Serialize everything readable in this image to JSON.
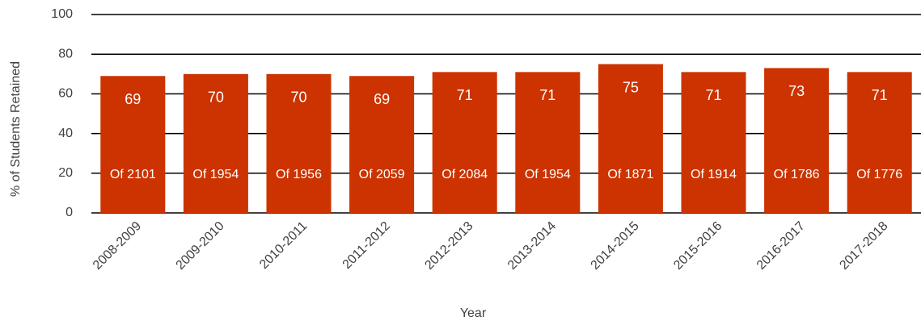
{
  "chart_data": {
    "type": "bar",
    "categories": [
      "2008-2009",
      "2009-2010",
      "2010-2011",
      "2011-2012",
      "2012-2013",
      "2013-2014",
      "2014-2015",
      "2015-2016",
      "2016-2017",
      "2017-2018"
    ],
    "values": [
      69,
      70,
      70,
      69,
      71,
      71,
      75,
      71,
      73,
      71
    ],
    "annotations": [
      "Of 2101",
      "Of 1954",
      "Of 1956",
      "Of 2059",
      "Of 2084",
      "Of 1954",
      "Of 1871",
      "Of 1914",
      "Of 1786",
      "Of 1776"
    ],
    "color": "#cc3300",
    "ylabel": "% of Students Retained",
    "xlabel": "Year",
    "ylim": [
      0,
      100
    ],
    "yticks": [
      0,
      20,
      40,
      60,
      80,
      100
    ],
    "grid": true
  }
}
